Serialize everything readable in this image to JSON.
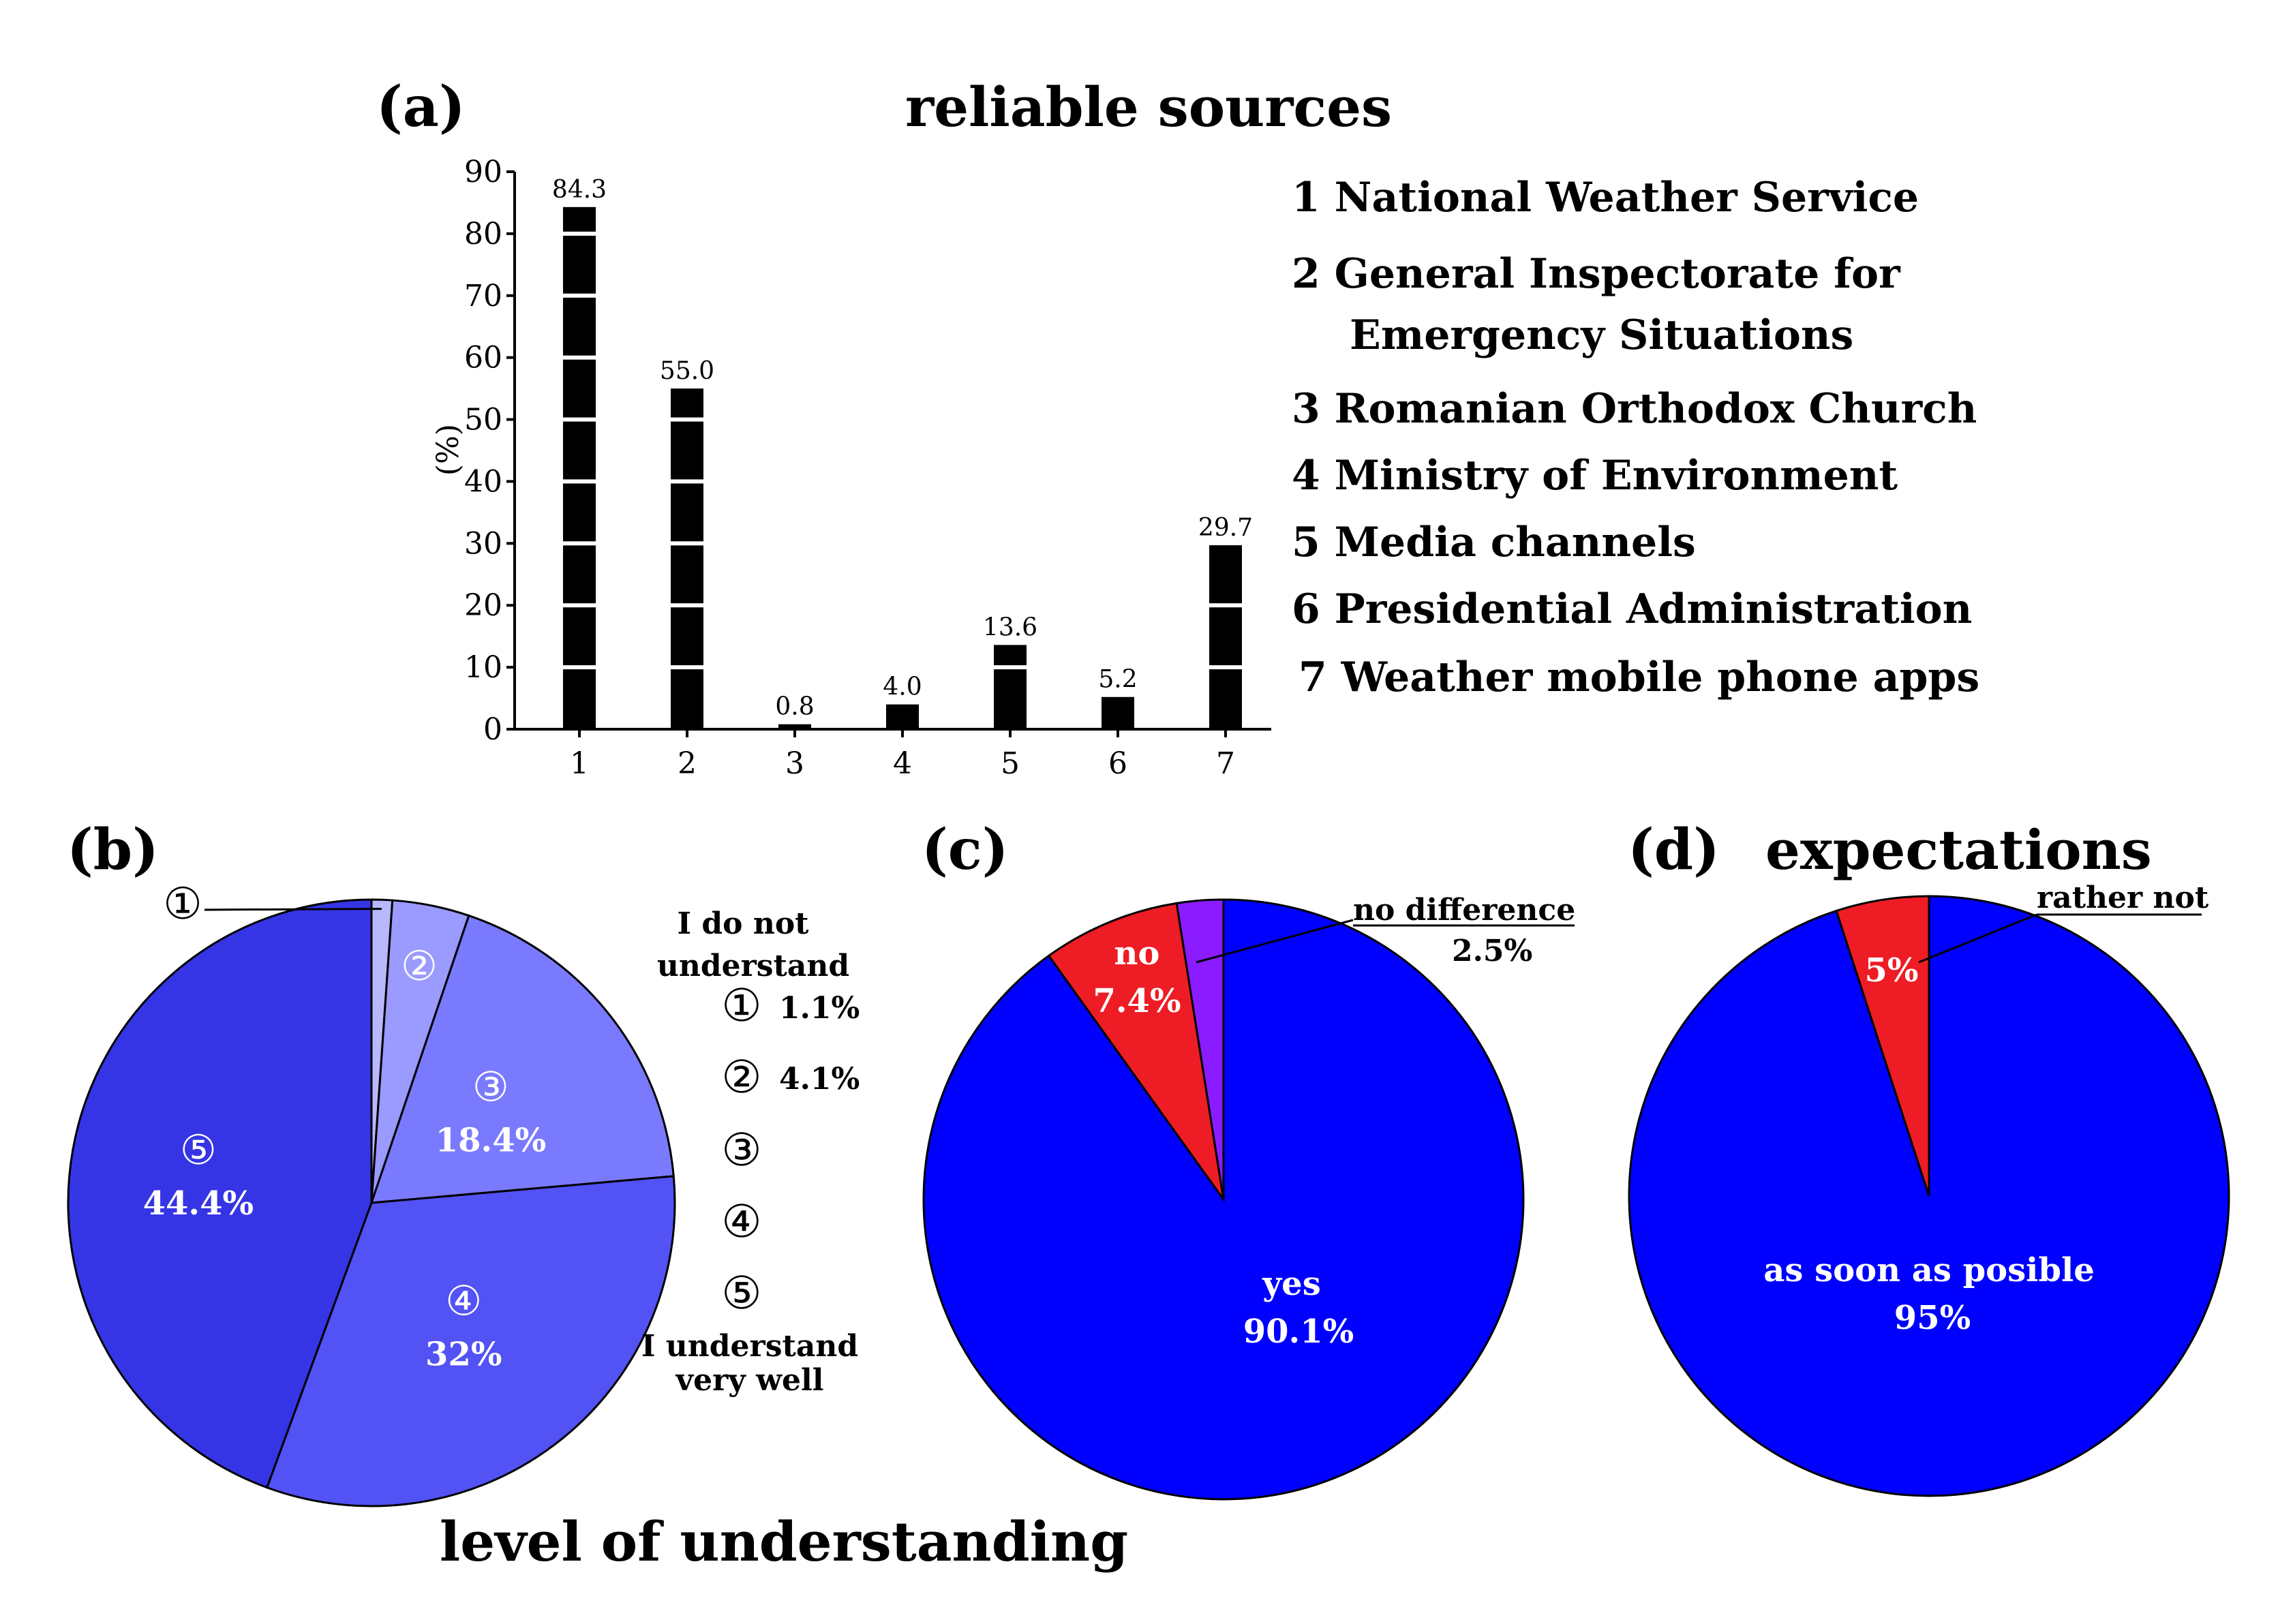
{
  "chart_data": [
    {
      "id": "a",
      "panel": "(a)",
      "type": "bar",
      "title": "reliable sources",
      "ylabel": "(%)",
      "ylim": [
        0,
        90
      ],
      "yticks": [
        "0",
        "10",
        "20",
        "30",
        "40",
        "50",
        "60",
        "70",
        "80",
        "90"
      ],
      "categories": [
        "1",
        "2",
        "3",
        "4",
        "5",
        "6",
        "7"
      ],
      "values": [
        84.3,
        55.0,
        0.8,
        4.0,
        13.6,
        5.2,
        29.7
      ],
      "value_labels": [
        "84.3",
        "55.0",
        "0.8",
        "4.0",
        "13.6",
        "5.2",
        "29.7"
      ],
      "legend": [
        "1 National Weather Service",
        "2 General Inspectorate for",
        "Emergency Situations",
        "3 Romanian Orthodox Church",
        "4 Ministry of Environment",
        "5 Media channels",
        "6 Presidential Administration",
        "7 Weather mobile phone apps"
      ]
    },
    {
      "id": "b",
      "panel": "(b)",
      "type": "pie",
      "title": "level of understanding",
      "slices": [
        {
          "marker": "①",
          "value": 1.1,
          "label": "1.1%",
          "color": "#b8b8ff"
        },
        {
          "marker": "②",
          "value": 4.1,
          "label": "4.1%",
          "color": "#9a9aff"
        },
        {
          "marker": "③",
          "value": 18.4,
          "label": "18.4%",
          "color": "#7a7aff"
        },
        {
          "marker": "④",
          "value": 32,
          "label": "32%",
          "color": "#5252f5"
        },
        {
          "marker": "⑤",
          "value": 44.4,
          "label": "44.4%",
          "color": "#3535e6"
        }
      ],
      "scale_top": [
        "I do not",
        "understand"
      ],
      "scale_bottom": [
        "I understand",
        "very well"
      ],
      "legend_markers": [
        "①",
        "②",
        "③",
        "④",
        "⑤"
      ],
      "legend_values": [
        "1.1%",
        "4.1%"
      ]
    },
    {
      "id": "c",
      "panel": "(c)",
      "type": "pie",
      "slices": [
        {
          "name": "yes",
          "value": 90.1,
          "label": "90.1%",
          "color": "#0000ff"
        },
        {
          "name": "no",
          "value": 7.4,
          "label": "7.4%",
          "color": "#ee1c24"
        },
        {
          "name": "no difference",
          "value": 2.5,
          "label": "2.5%",
          "color": "#8a1cff"
        }
      ]
    },
    {
      "id": "d",
      "panel": "(d)",
      "type": "pie",
      "title": "expectations",
      "slices": [
        {
          "name": "as soon as posible",
          "value": 95,
          "label": "95%",
          "color": "#0000ff"
        },
        {
          "name": "rather not",
          "value": 5,
          "label": "5%",
          "color": "#ee1c24"
        }
      ]
    }
  ]
}
